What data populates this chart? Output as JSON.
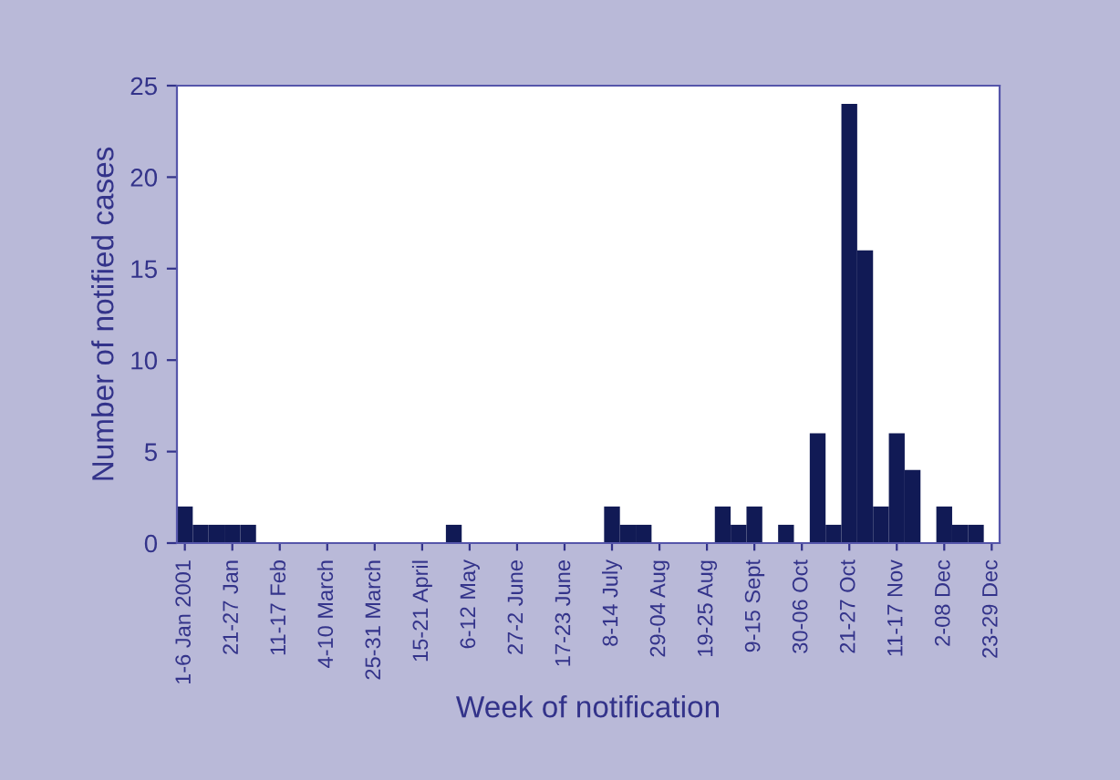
{
  "chart_data": {
    "type": "bar",
    "xlabel": "Week of notification",
    "ylabel": "Number of notified cases",
    "categories": [
      "1-6 Jan 2001",
      null,
      null,
      "21-27 Jan",
      null,
      null,
      "11-17 Feb",
      null,
      null,
      "4-10 March",
      null,
      null,
      "25-31 March",
      null,
      null,
      "15-21 April",
      null,
      null,
      "6-12 May",
      null,
      null,
      "27-2 June",
      null,
      null,
      "17-23 June",
      null,
      null,
      "8-14 July",
      null,
      null,
      "29-04 Aug",
      null,
      null,
      "19-25 Aug",
      null,
      null,
      "9-15 Sept",
      null,
      null,
      "30-06 Oct",
      null,
      null,
      "21-27 Oct",
      null,
      null,
      "11-17 Nov",
      null,
      null,
      "2-08 Dec",
      null,
      null,
      "23-29 Dec"
    ],
    "values": [
      2,
      1,
      1,
      1,
      1,
      0,
      0,
      0,
      0,
      0,
      0,
      0,
      0,
      0,
      0,
      0,
      0,
      1,
      0,
      0,
      0,
      0,
      0,
      0,
      0,
      0,
      0,
      2,
      1,
      1,
      0,
      0,
      0,
      0,
      2,
      1,
      2,
      0,
      1,
      0,
      6,
      1,
      24,
      16,
      2,
      6,
      4,
      0,
      2,
      1,
      1,
      0
    ],
    "color": "#111a55",
    "ylim": [
      0,
      25
    ],
    "yticks": [
      0,
      5,
      10,
      15,
      20,
      25
    ],
    "grid": false,
    "legend": false
  }
}
